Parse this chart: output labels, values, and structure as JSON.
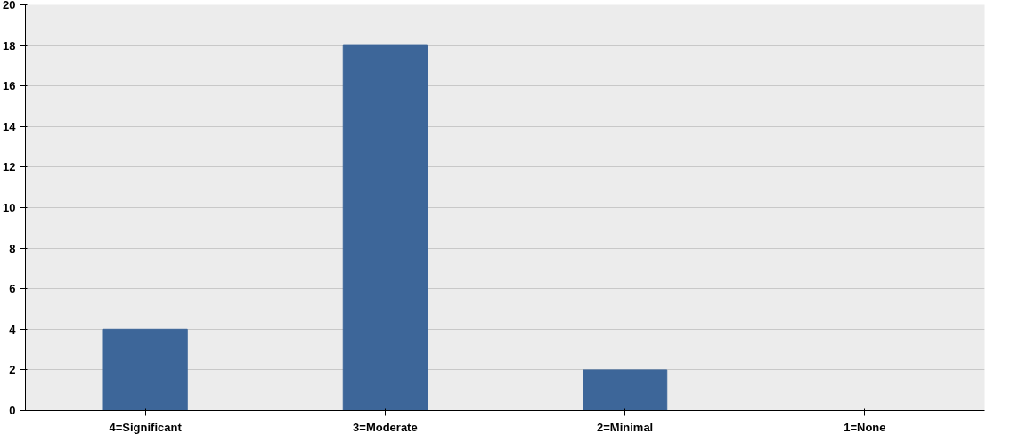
{
  "chart_data": {
    "type": "bar",
    "categories": [
      "4=Significant",
      "3=Moderate",
      "2=Minimal",
      "1=None"
    ],
    "values": [
      4,
      18,
      2,
      0
    ],
    "color": "#3d6699",
    "ylim": [
      0,
      20
    ],
    "yticks": [
      0,
      2,
      4,
      6,
      8,
      10,
      12,
      14,
      16,
      18,
      20
    ],
    "grid": "y"
  }
}
